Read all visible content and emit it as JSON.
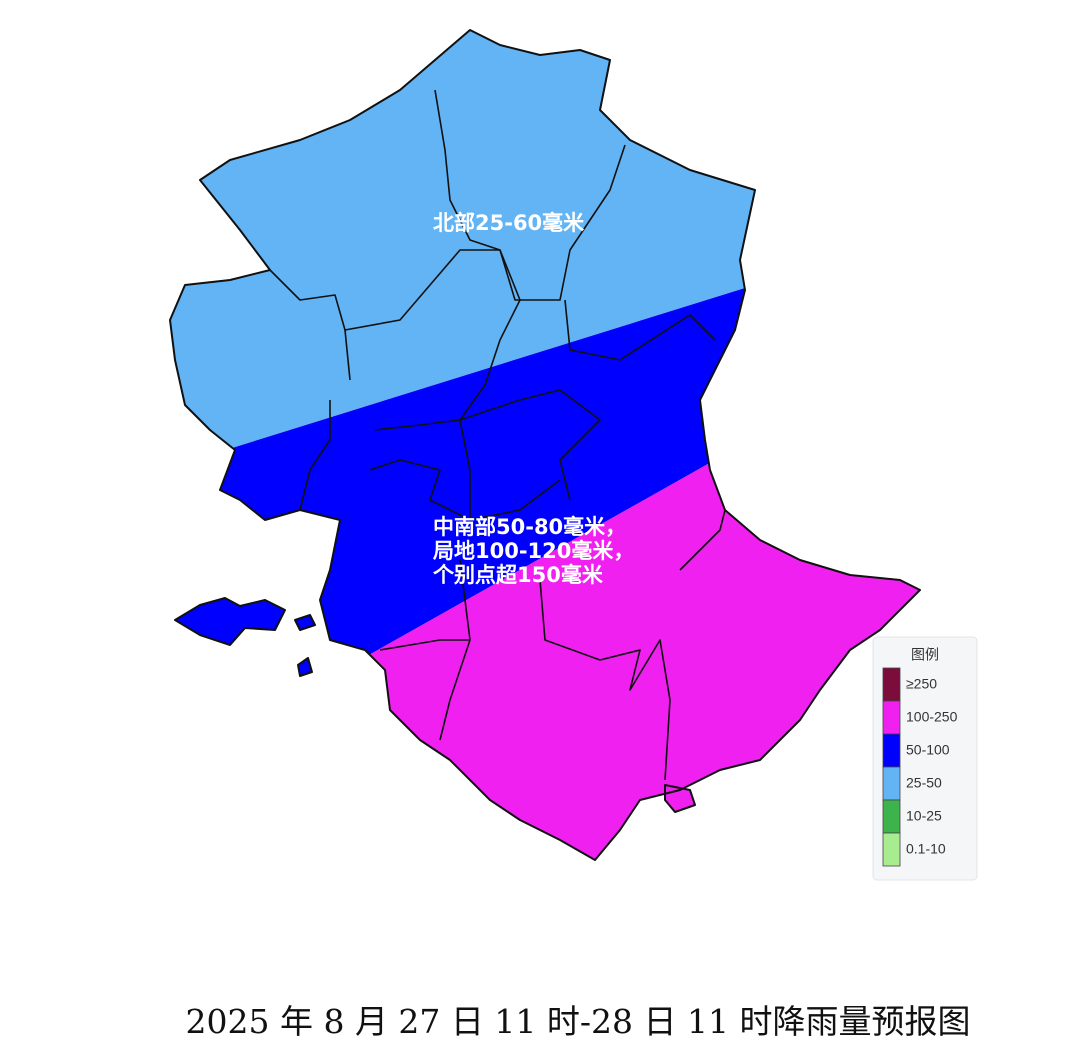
{
  "map": {
    "annotations": [
      [
        "北部25-60毫米"
      ],
      [
        "中南部50-80毫米，",
        "局地100-120毫米，",
        "个别点超150毫米"
      ]
    ],
    "legend": {
      "title": "图例",
      "items": [
        {
          "label": "≥250",
          "color": "#7b0c3c"
        },
        {
          "label": "100-250",
          "color": "#f020f0"
        },
        {
          "label": "50-100",
          "color": "#0000ff"
        },
        {
          "label": "25-50",
          "color": "#63b4f5"
        },
        {
          "label": "10-25",
          "color": "#3cb44b"
        },
        {
          "label": "0.1-10",
          "color": "#a8ec90"
        }
      ]
    },
    "caption": "2025 年 8 月 27 日 11 时-28 日 11 时降雨量预报图"
  }
}
